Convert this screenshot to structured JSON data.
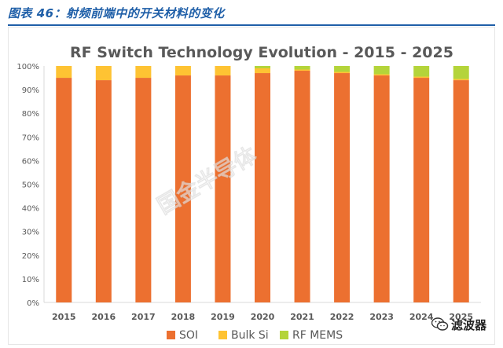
{
  "caption": {
    "text": "图表 46：射频前端中的开关材料的变化"
  },
  "watermark": {
    "text": "国金半导体"
  },
  "footer_mark": {
    "text": "滤波器"
  },
  "colors": {
    "soi": "#ec7030",
    "bulk": "#fec333",
    "mems": "#b4d43a",
    "caption": "#1f5fa8"
  },
  "chart_data": {
    "type": "bar",
    "stacked": true,
    "title": "RF Switch Technology Evolution - 2015 - 2025",
    "xlabel": "",
    "ylabel": "",
    "ylim": [
      0,
      100
    ],
    "yticks": [
      "0%",
      "10%",
      "20%",
      "30%",
      "40%",
      "50%",
      "60%",
      "70%",
      "80%",
      "90%",
      "100%"
    ],
    "categories": [
      "2015",
      "2016",
      "2017",
      "2018",
      "2019",
      "2020",
      "2021",
      "2022",
      "2023",
      "2024",
      "2025"
    ],
    "series": [
      {
        "name": "SOI",
        "color": "#ec7030",
        "values": [
          95,
          94,
          95,
          96,
          96,
          97,
          98,
          97,
          96,
          95,
          94
        ]
      },
      {
        "name": "Bulk Si",
        "color": "#fec333",
        "values": [
          5,
          6,
          5,
          4,
          4,
          2,
          0.5,
          0.5,
          0.5,
          0.5,
          0.5
        ]
      },
      {
        "name": "RF MEMS",
        "color": "#b4d43a",
        "values": [
          0,
          0,
          0,
          0,
          0,
          1,
          1.5,
          2.5,
          3.5,
          4.5,
          5.5
        ]
      }
    ],
    "legend": "bottom",
    "grid": false
  }
}
